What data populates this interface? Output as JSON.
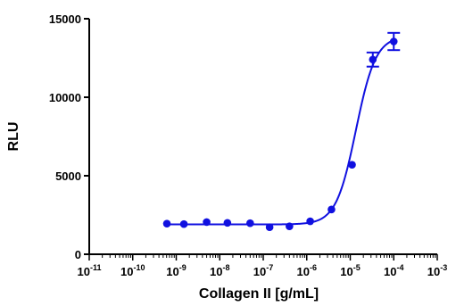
{
  "chart_data": {
    "type": "scatter",
    "title": "",
    "xlabel": "Collagen II [g/mL]",
    "ylabel": "RLU",
    "xscale": "log",
    "xlim": [
      1e-11,
      0.001
    ],
    "ylim": [
      0,
      15000
    ],
    "grid": false,
    "legend": "none",
    "x_tick_labels": [
      {
        "base": "10",
        "exp": "-11"
      },
      {
        "base": "10",
        "exp": "-10"
      },
      {
        "base": "10",
        "exp": "-9"
      },
      {
        "base": "10",
        "exp": "-8"
      },
      {
        "base": "10",
        "exp": "-7"
      },
      {
        "base": "10",
        "exp": "-6"
      },
      {
        "base": "10",
        "exp": "-5"
      },
      {
        "base": "10",
        "exp": "-4"
      },
      {
        "base": "10",
        "exp": "-3"
      }
    ],
    "y_ticks": [
      0,
      5000,
      10000,
      15000
    ],
    "y_tick_labels": [
      "0",
      "5000",
      "10000",
      "15000"
    ],
    "series": [
      {
        "color": "#1010e0",
        "points": [
          {
            "x": 6.1e-10,
            "y": 1950
          },
          {
            "x": 1.5e-09,
            "y": 1920
          },
          {
            "x": 5e-09,
            "y": 2050
          },
          {
            "x": 1.5e-08,
            "y": 2000
          },
          {
            "x": 5e-08,
            "y": 1980
          },
          {
            "x": 1.4e-07,
            "y": 1720
          },
          {
            "x": 4e-07,
            "y": 1780
          },
          {
            "x": 1.2e-06,
            "y": 2100
          },
          {
            "x": 3.7e-06,
            "y": 2850
          },
          {
            "x": 1.1e-05,
            "y": 5700
          },
          {
            "x": 3.3e-05,
            "y": 12400,
            "err": 450
          },
          {
            "x": 0.0001,
            "y": 13550,
            "err": 550
          }
        ],
        "fit": {
          "model": "sigmoidal",
          "bottom": 1900,
          "top": 13900,
          "log_ec50": -4.87,
          "hill": 1.9
        }
      }
    ]
  }
}
